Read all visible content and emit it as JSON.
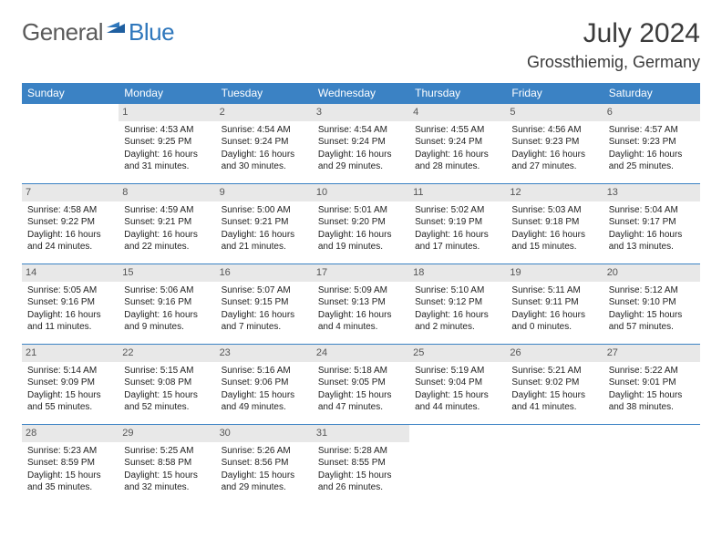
{
  "brand": {
    "name_a": "General",
    "name_b": "Blue"
  },
  "header": {
    "month": "July 2024",
    "location": "Grossthiemig, Germany"
  },
  "dows": [
    "Sunday",
    "Monday",
    "Tuesday",
    "Wednesday",
    "Thursday",
    "Friday",
    "Saturday"
  ],
  "colors": {
    "header_bg": "#3b82c4",
    "daynum_bg": "#e8e8e8",
    "rule": "#3b82c4"
  },
  "weeks": [
    [
      {
        "n": "",
        "sr": "",
        "ss": "",
        "dl": ""
      },
      {
        "n": "1",
        "sr": "Sunrise: 4:53 AM",
        "ss": "Sunset: 9:25 PM",
        "dl": "Daylight: 16 hours and 31 minutes."
      },
      {
        "n": "2",
        "sr": "Sunrise: 4:54 AM",
        "ss": "Sunset: 9:24 PM",
        "dl": "Daylight: 16 hours and 30 minutes."
      },
      {
        "n": "3",
        "sr": "Sunrise: 4:54 AM",
        "ss": "Sunset: 9:24 PM",
        "dl": "Daylight: 16 hours and 29 minutes."
      },
      {
        "n": "4",
        "sr": "Sunrise: 4:55 AM",
        "ss": "Sunset: 9:24 PM",
        "dl": "Daylight: 16 hours and 28 minutes."
      },
      {
        "n": "5",
        "sr": "Sunrise: 4:56 AM",
        "ss": "Sunset: 9:23 PM",
        "dl": "Daylight: 16 hours and 27 minutes."
      },
      {
        "n": "6",
        "sr": "Sunrise: 4:57 AM",
        "ss": "Sunset: 9:23 PM",
        "dl": "Daylight: 16 hours and 25 minutes."
      }
    ],
    [
      {
        "n": "7",
        "sr": "Sunrise: 4:58 AM",
        "ss": "Sunset: 9:22 PM",
        "dl": "Daylight: 16 hours and 24 minutes."
      },
      {
        "n": "8",
        "sr": "Sunrise: 4:59 AM",
        "ss": "Sunset: 9:21 PM",
        "dl": "Daylight: 16 hours and 22 minutes."
      },
      {
        "n": "9",
        "sr": "Sunrise: 5:00 AM",
        "ss": "Sunset: 9:21 PM",
        "dl": "Daylight: 16 hours and 21 minutes."
      },
      {
        "n": "10",
        "sr": "Sunrise: 5:01 AM",
        "ss": "Sunset: 9:20 PM",
        "dl": "Daylight: 16 hours and 19 minutes."
      },
      {
        "n": "11",
        "sr": "Sunrise: 5:02 AM",
        "ss": "Sunset: 9:19 PM",
        "dl": "Daylight: 16 hours and 17 minutes."
      },
      {
        "n": "12",
        "sr": "Sunrise: 5:03 AM",
        "ss": "Sunset: 9:18 PM",
        "dl": "Daylight: 16 hours and 15 minutes."
      },
      {
        "n": "13",
        "sr": "Sunrise: 5:04 AM",
        "ss": "Sunset: 9:17 PM",
        "dl": "Daylight: 16 hours and 13 minutes."
      }
    ],
    [
      {
        "n": "14",
        "sr": "Sunrise: 5:05 AM",
        "ss": "Sunset: 9:16 PM",
        "dl": "Daylight: 16 hours and 11 minutes."
      },
      {
        "n": "15",
        "sr": "Sunrise: 5:06 AM",
        "ss": "Sunset: 9:16 PM",
        "dl": "Daylight: 16 hours and 9 minutes."
      },
      {
        "n": "16",
        "sr": "Sunrise: 5:07 AM",
        "ss": "Sunset: 9:15 PM",
        "dl": "Daylight: 16 hours and 7 minutes."
      },
      {
        "n": "17",
        "sr": "Sunrise: 5:09 AM",
        "ss": "Sunset: 9:13 PM",
        "dl": "Daylight: 16 hours and 4 minutes."
      },
      {
        "n": "18",
        "sr": "Sunrise: 5:10 AM",
        "ss": "Sunset: 9:12 PM",
        "dl": "Daylight: 16 hours and 2 minutes."
      },
      {
        "n": "19",
        "sr": "Sunrise: 5:11 AM",
        "ss": "Sunset: 9:11 PM",
        "dl": "Daylight: 16 hours and 0 minutes."
      },
      {
        "n": "20",
        "sr": "Sunrise: 5:12 AM",
        "ss": "Sunset: 9:10 PM",
        "dl": "Daylight: 15 hours and 57 minutes."
      }
    ],
    [
      {
        "n": "21",
        "sr": "Sunrise: 5:14 AM",
        "ss": "Sunset: 9:09 PM",
        "dl": "Daylight: 15 hours and 55 minutes."
      },
      {
        "n": "22",
        "sr": "Sunrise: 5:15 AM",
        "ss": "Sunset: 9:08 PM",
        "dl": "Daylight: 15 hours and 52 minutes."
      },
      {
        "n": "23",
        "sr": "Sunrise: 5:16 AM",
        "ss": "Sunset: 9:06 PM",
        "dl": "Daylight: 15 hours and 49 minutes."
      },
      {
        "n": "24",
        "sr": "Sunrise: 5:18 AM",
        "ss": "Sunset: 9:05 PM",
        "dl": "Daylight: 15 hours and 47 minutes."
      },
      {
        "n": "25",
        "sr": "Sunrise: 5:19 AM",
        "ss": "Sunset: 9:04 PM",
        "dl": "Daylight: 15 hours and 44 minutes."
      },
      {
        "n": "26",
        "sr": "Sunrise: 5:21 AM",
        "ss": "Sunset: 9:02 PM",
        "dl": "Daylight: 15 hours and 41 minutes."
      },
      {
        "n": "27",
        "sr": "Sunrise: 5:22 AM",
        "ss": "Sunset: 9:01 PM",
        "dl": "Daylight: 15 hours and 38 minutes."
      }
    ],
    [
      {
        "n": "28",
        "sr": "Sunrise: 5:23 AM",
        "ss": "Sunset: 8:59 PM",
        "dl": "Daylight: 15 hours and 35 minutes."
      },
      {
        "n": "29",
        "sr": "Sunrise: 5:25 AM",
        "ss": "Sunset: 8:58 PM",
        "dl": "Daylight: 15 hours and 32 minutes."
      },
      {
        "n": "30",
        "sr": "Sunrise: 5:26 AM",
        "ss": "Sunset: 8:56 PM",
        "dl": "Daylight: 15 hours and 29 minutes."
      },
      {
        "n": "31",
        "sr": "Sunrise: 5:28 AM",
        "ss": "Sunset: 8:55 PM",
        "dl": "Daylight: 15 hours and 26 minutes."
      },
      {
        "n": "",
        "sr": "",
        "ss": "",
        "dl": ""
      },
      {
        "n": "",
        "sr": "",
        "ss": "",
        "dl": ""
      },
      {
        "n": "",
        "sr": "",
        "ss": "",
        "dl": ""
      }
    ]
  ]
}
